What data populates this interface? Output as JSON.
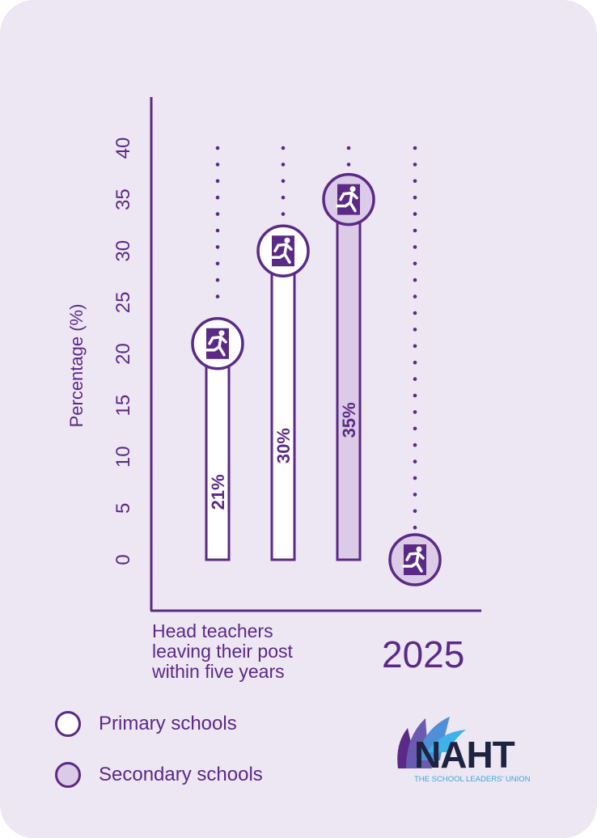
{
  "colors": {
    "background": "#ede6f3",
    "accent": "#5b2a86",
    "primary_fill": "#ffffff",
    "secondary_fill": "#dccbe6"
  },
  "chart_data": {
    "type": "bar",
    "ylabel": "Percentage (%)",
    "ylim": [
      0,
      40
    ],
    "yticks": [
      "0",
      "5",
      "10",
      "15",
      "20",
      "25",
      "30",
      "35",
      "40"
    ],
    "xlabel_lines": [
      "Head teachers",
      "leaving their post",
      "within five years"
    ],
    "x_end_label": "2025",
    "bars": [
      {
        "value": 21,
        "label": "21%",
        "series": "Primary schools"
      },
      {
        "value": 30,
        "label": "30%",
        "series": "Primary schools"
      },
      {
        "value": 35,
        "label": "35%",
        "series": "Secondary schools"
      },
      {
        "value": 0,
        "label": "",
        "series": "Secondary schools"
      }
    ],
    "marker_icon": "running-exit-icon",
    "legend": [
      {
        "name": "Primary schools",
        "color": "#ffffff"
      },
      {
        "name": "Secondary schools",
        "color": "#dccbe6"
      }
    ],
    "legend_position": "bottom-left"
  },
  "logo": {
    "text": "NAHT",
    "tagline": "THE SCHOOL LEADERS' UNION"
  }
}
